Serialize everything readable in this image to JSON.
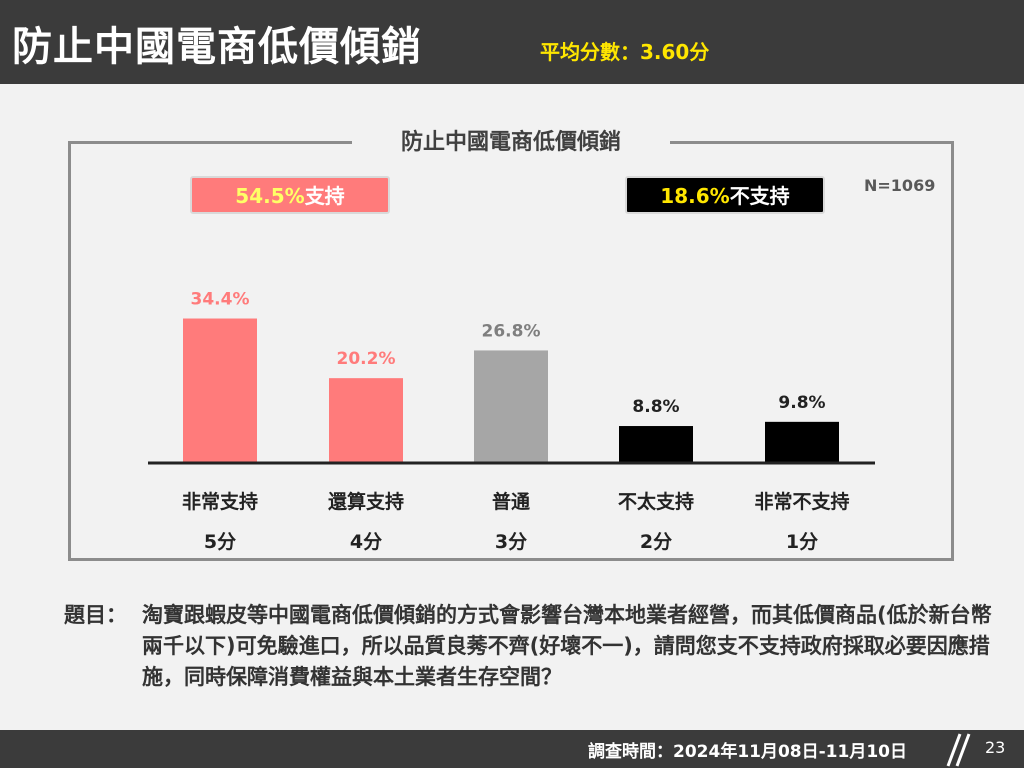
{
  "header": {
    "title": "防止中國電商低價傾銷",
    "average_label": "平均分數：3.60分"
  },
  "frame_title": "防止中國電商低價傾銷",
  "sample_size": "N=1069",
  "summary": {
    "support": {
      "pct": "54.5%",
      "label": "支持"
    },
    "oppose": {
      "pct": "18.6%",
      "label": "不支持"
    }
  },
  "chart_data": {
    "type": "bar",
    "categories": [
      "非常支持",
      "還算支持",
      "普通",
      "不太支持",
      "非常不支持"
    ],
    "category_scores": [
      "5分",
      "4分",
      "3分",
      "2分",
      "1分"
    ],
    "values": [
      34.4,
      20.2,
      26.8,
      8.8,
      9.8
    ],
    "value_labels": [
      "34.4%",
      "20.2%",
      "26.8%",
      "8.8%",
      "9.8%"
    ],
    "colors": [
      "#ff7b7b",
      "#ff7b7b",
      "#a6a6a6",
      "#000000",
      "#000000"
    ],
    "label_colors": [
      "#ff7b7b",
      "#ff7b7b",
      "#7f7f7f",
      "#222222",
      "#222222"
    ],
    "ylim": [
      0,
      40
    ],
    "grid": false
  },
  "question": {
    "label": "題目：",
    "text": "淘寶跟蝦皮等中國電商低價傾銷的方式會影響台灣本地業者經營，而其低價商品(低於新台幣兩千以下)可免驗進口，所以品質良莠不齊(好壞不一)，請問您支不支持政府採取必要因應措施，同時保障消費權益與本土業者生存空間？"
  },
  "footer": {
    "survey_date": "調查時間：2024年11月08日-11月10日",
    "page_number": "23"
  }
}
